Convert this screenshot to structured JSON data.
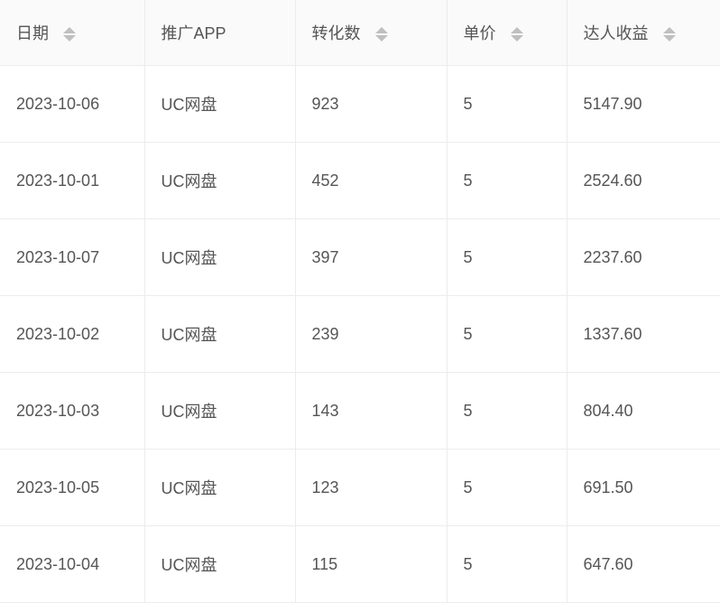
{
  "columns": [
    {
      "label": "日期",
      "sortable": true
    },
    {
      "label": "推广APP",
      "sortable": false
    },
    {
      "label": "转化数",
      "sortable": true
    },
    {
      "label": "单价",
      "sortable": true
    },
    {
      "label": "达人收益",
      "sortable": true
    }
  ],
  "rows": [
    [
      "2023-10-06",
      "UC网盘",
      "923",
      "5",
      "5147.90"
    ],
    [
      "2023-10-01",
      "UC网盘",
      "452",
      "5",
      "2524.60"
    ],
    [
      "2023-10-07",
      "UC网盘",
      "397",
      "5",
      "2237.60"
    ],
    [
      "2023-10-02",
      "UC网盘",
      "239",
      "5",
      "1337.60"
    ],
    [
      "2023-10-03",
      "UC网盘",
      "143",
      "5",
      "804.40"
    ],
    [
      "2023-10-05",
      "UC网盘",
      "123",
      "5",
      "691.50"
    ],
    [
      "2023-10-04",
      "UC网盘",
      "115",
      "5",
      "647.60"
    ]
  ]
}
